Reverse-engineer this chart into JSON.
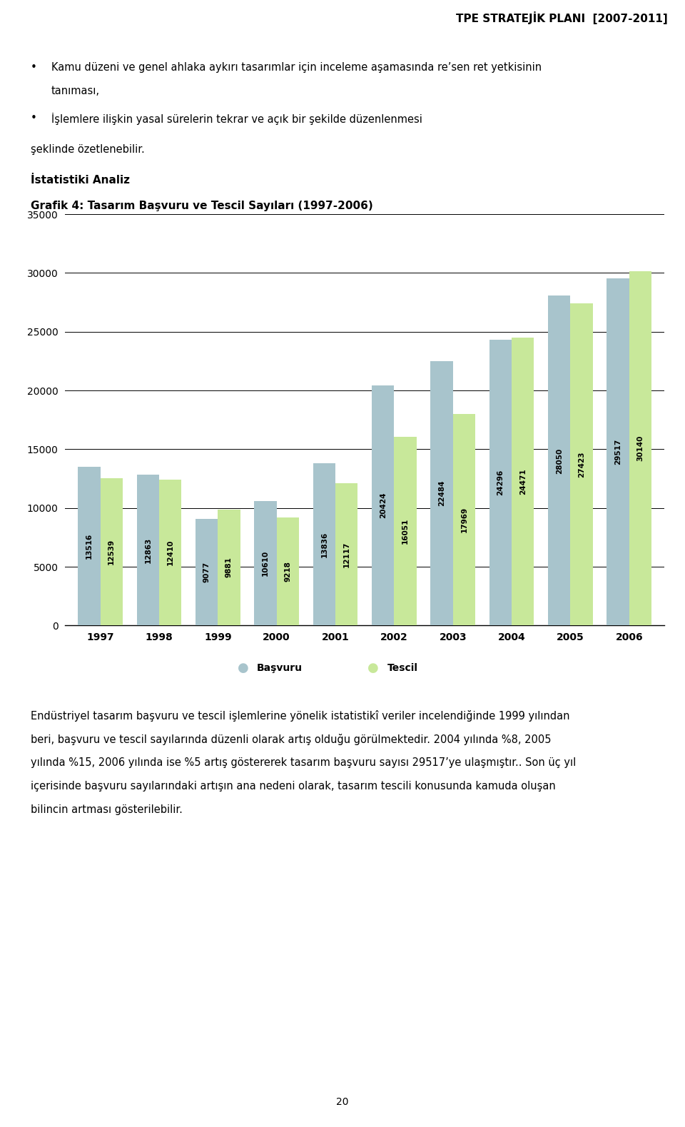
{
  "header": "TPE STRATEJİK PLANI  [2007-2011]",
  "years": [
    1997,
    1998,
    1999,
    2000,
    2001,
    2002,
    2003,
    2004,
    2005,
    2006
  ],
  "basvuru": [
    13516,
    12863,
    9077,
    10610,
    13836,
    20424,
    22484,
    24296,
    28050,
    29517
  ],
  "tescil": [
    12539,
    12410,
    9881,
    9218,
    12117,
    16051,
    17969,
    24471,
    27423,
    30140
  ],
  "ylim": [
    0,
    35000
  ],
  "yticks": [
    0,
    5000,
    10000,
    15000,
    20000,
    25000,
    30000,
    35000
  ],
  "bar_color_basvuru": "#a8c4cc",
  "bar_color_tescil": "#c8e89a",
  "legend_basvuru": "Başvuru",
  "legend_tescil": "Tescil",
  "header_bg": "#cde8f0",
  "page_number": "20"
}
